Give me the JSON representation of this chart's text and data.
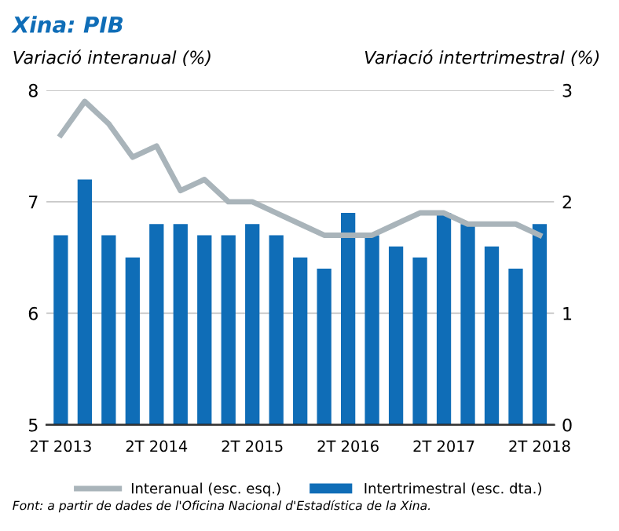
{
  "chart_data": {
    "type": "bar",
    "title": "Xina: PIB",
    "ylabel": "Variació interanual (%)",
    "y2label": "Variació intertrimestral (%)",
    "categories": [
      "2T 2013",
      null,
      null,
      null,
      "2T 2014",
      null,
      null,
      null,
      "2T 2015",
      null,
      null,
      null,
      "2T 2016",
      null,
      null,
      null,
      "2T 2017",
      null,
      null,
      null,
      "2T 2018"
    ],
    "series": [
      {
        "name": "Interanual (esc. esq.)",
        "type": "line",
        "color": "#a9b4ba",
        "values": [
          7.6,
          7.9,
          7.7,
          7.4,
          7.5,
          7.1,
          7.2,
          7.0,
          7.0,
          6.9,
          6.8,
          6.7,
          6.7,
          6.7,
          6.8,
          6.9,
          6.9,
          6.8,
          6.8,
          6.8,
          6.7
        ]
      },
      {
        "name": "Intertrimestral (esc. dta.)",
        "axis": "y2",
        "color": "#0f6db7",
        "values": [
          1.7,
          2.2,
          1.7,
          1.5,
          1.8,
          1.8,
          1.7,
          1.7,
          1.8,
          1.7,
          1.5,
          1.4,
          1.9,
          1.7,
          1.6,
          1.5,
          1.9,
          1.8,
          1.6,
          1.4,
          1.8
        ]
      }
    ],
    "ylim": [
      5,
      8
    ],
    "yticks": [
      5,
      6,
      7,
      8
    ],
    "y2lim": [
      0,
      3
    ],
    "y2ticks": [
      0,
      1,
      2,
      3
    ],
    "grid": "y",
    "legend": "bottom",
    "annotations": [
      "Font: a partir de dades de l'Oficina Nacional d'Estadística de la Xina."
    ]
  }
}
